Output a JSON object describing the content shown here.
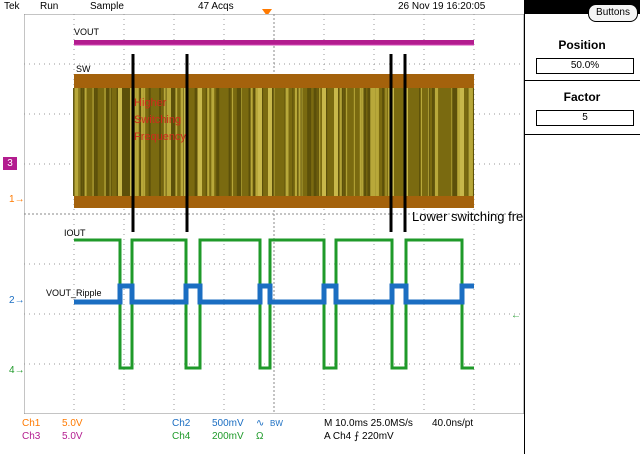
{
  "topbar": {
    "brand": "Tek",
    "run_state": "Run",
    "acq_mode": "Sample",
    "acquisitions": "47 Acqs",
    "date_time": "26 Nov 19 16:20:05"
  },
  "menu": {
    "buttons_label": "Buttons",
    "position_label": "Position",
    "position_value": "50.0%",
    "factor_label": "Factor",
    "factor_value": "5"
  },
  "channels": {
    "ch1": {
      "label": "Ch1",
      "scale": "5.0V",
      "color": "#ff7a00",
      "marker": "1"
    },
    "ch2": {
      "label": "Ch2",
      "scale": "500mV",
      "color": "#1b6ec2",
      "marker": "2",
      "coupling_symbol": "∿"
    },
    "ch3": {
      "label": "Ch3",
      "scale": "5.0V",
      "color": "#b31c8f",
      "marker": "3"
    },
    "ch4": {
      "label": "Ch4",
      "scale": "200mV",
      "color": "#1f9a2a",
      "marker": "4",
      "impedance_symbol": "Ω"
    }
  },
  "bandwidth_symbol": "BW",
  "timebase": {
    "horizontal": "M 10.0ms 25.0MS/s",
    "resolution": "40.0ns/pt",
    "trigger": "A  Ch4  ⨍  220mV"
  },
  "traces": {
    "vout": "VOUT",
    "sw": "SW",
    "iout": "IOUT",
    "vout_ripple": "VOUT_Ripple"
  },
  "annotations": {
    "higher": [
      "Higher",
      "Switching",
      "Frequency"
    ],
    "lower": "Lower switching frequency",
    "higher_color": "#d12a1c"
  }
}
